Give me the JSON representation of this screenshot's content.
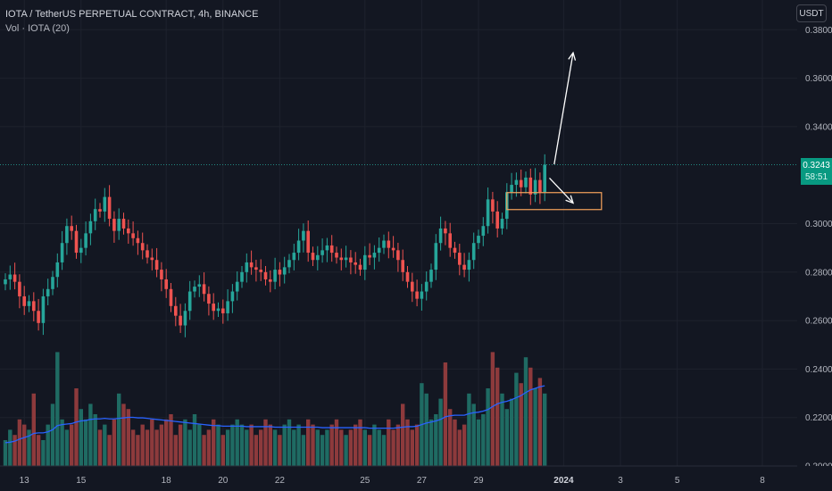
{
  "header": {
    "title": "IOTA / TetherUS PERPETUAL CONTRACT, 4h, BINANCE",
    "volume_label": "Vol · IOTA (20)"
  },
  "currency_button": "USDT",
  "last_price": {
    "value": "0.3243",
    "countdown": "58:51",
    "color": "#089981"
  },
  "colors": {
    "background": "#131722",
    "up": "#26a69a",
    "down": "#ef5350",
    "volume_up": "#1f6b63",
    "volume_down": "#8d3a3c",
    "volume_ma": "#2962ff",
    "zone_border": "#f7a35c",
    "arrow": "#ffffff"
  },
  "chart_data": {
    "type": "candlestick",
    "symbol": "IOTA / TetherUS PERPETUAL CONTRACT",
    "timeframe": "4h",
    "exchange": "BINANCE",
    "y_axis": {
      "ticks": [
        "0.3800",
        "0.3600",
        "0.3400",
        "0.3000",
        "0.2800",
        "0.2600",
        "0.2400",
        "0.2200",
        "0.2000"
      ],
      "range": [
        0.2,
        0.39
      ]
    },
    "x_axis": {
      "ticks": [
        {
          "label": "13",
          "index": 4
        },
        {
          "label": "15",
          "index": 16
        },
        {
          "label": "18",
          "index": 34
        },
        {
          "label": "20",
          "index": 46
        },
        {
          "label": "22",
          "index": 58
        },
        {
          "label": "25",
          "index": 76
        },
        {
          "label": "27",
          "index": 88
        },
        {
          "label": "29",
          "index": 100
        },
        {
          "label": "2024",
          "index": 118,
          "bold": true
        },
        {
          "label": "3",
          "index": 130
        },
        {
          "label": "5",
          "index": 142
        },
        {
          "label": "8",
          "index": 160
        }
      ]
    },
    "closes": [
      0.277,
      0.279,
      0.276,
      0.27,
      0.266,
      0.268,
      0.264,
      0.259,
      0.27,
      0.273,
      0.278,
      0.284,
      0.292,
      0.299,
      0.297,
      0.288,
      0.29,
      0.296,
      0.301,
      0.306,
      0.305,
      0.311,
      0.302,
      0.297,
      0.302,
      0.298,
      0.296,
      0.294,
      0.292,
      0.289,
      0.286,
      0.285,
      0.281,
      0.277,
      0.273,
      0.266,
      0.262,
      0.258,
      0.264,
      0.272,
      0.274,
      0.275,
      0.271,
      0.267,
      0.264,
      0.265,
      0.263,
      0.268,
      0.272,
      0.276,
      0.28,
      0.284,
      0.282,
      0.281,
      0.28,
      0.277,
      0.276,
      0.281,
      0.279,
      0.282,
      0.285,
      0.288,
      0.293,
      0.297,
      0.288,
      0.285,
      0.287,
      0.289,
      0.291,
      0.288,
      0.286,
      0.285,
      0.286,
      0.284,
      0.283,
      0.281,
      0.287,
      0.286,
      0.288,
      0.29,
      0.293,
      0.29,
      0.289,
      0.285,
      0.28,
      0.276,
      0.272,
      0.269,
      0.272,
      0.276,
      0.281,
      0.292,
      0.298,
      0.296,
      0.29,
      0.288,
      0.283,
      0.281,
      0.285,
      0.292,
      0.295,
      0.299,
      0.31,
      0.305,
      0.298,
      0.302,
      0.313,
      0.316,
      0.318,
      0.315,
      0.319,
      0.312,
      0.318,
      0.313,
      0.3243
    ],
    "volumes": [
      5,
      7,
      6,
      9,
      8,
      7,
      14,
      6,
      5,
      8,
      12,
      22,
      9,
      7,
      8,
      15,
      11,
      9,
      12,
      10,
      7,
      8,
      6,
      9,
      14,
      12,
      11,
      7,
      6,
      8,
      7,
      9,
      7,
      8,
      9,
      10,
      6,
      8,
      9,
      7,
      10,
      8,
      6,
      7,
      9,
      8,
      6,
      7,
      8,
      9,
      8,
      7,
      8,
      6,
      7,
      9,
      8,
      7,
      6,
      8,
      9,
      7,
      8,
      6,
      9,
      8,
      7,
      6,
      7,
      8,
      9,
      7,
      6,
      7,
      8,
      9,
      7,
      6,
      8,
      7,
      6,
      9,
      7,
      8,
      12,
      9,
      7,
      8,
      16,
      14,
      9,
      10,
      13,
      20,
      11,
      9,
      7,
      8,
      14,
      12,
      9,
      10,
      15,
      22,
      19,
      14,
      11,
      13,
      18,
      16,
      21,
      19,
      15,
      17,
      14
    ],
    "volume_ma": [
      4.5,
      4.6,
      4.8,
      5.2,
      5.5,
      5.8,
      6.3,
      6.4,
      6.4,
      6.6,
      7.0,
      7.8,
      8.0,
      8.1,
      8.2,
      8.5,
      8.7,
      8.8,
      9.0,
      9.1,
      9.1,
      9.2,
      9.1,
      9.1,
      9.2,
      9.3,
      9.4,
      9.4,
      9.3,
      9.3,
      9.2,
      9.1,
      9.0,
      8.9,
      8.8,
      8.7,
      8.6,
      8.5,
      8.4,
      8.3,
      8.2,
      8.1,
      8.0,
      7.9,
      7.8,
      7.8,
      7.7,
      7.7,
      7.7,
      7.7,
      7.7,
      7.6,
      7.6,
      7.6,
      7.6,
      7.6,
      7.6,
      7.5,
      7.5,
      7.5,
      7.5,
      7.5,
      7.5,
      7.5,
      7.5,
      7.5,
      7.5,
      7.4,
      7.4,
      7.4,
      7.4,
      7.4,
      7.4,
      7.4,
      7.4,
      7.4,
      7.4,
      7.3,
      7.3,
      7.3,
      7.3,
      7.3,
      7.3,
      7.4,
      7.5,
      7.6,
      7.6,
      7.7,
      8.0,
      8.3,
      8.5,
      8.7,
      9.0,
      9.5,
      9.7,
      9.8,
      9.8,
      9.8,
      10.1,
      10.3,
      10.4,
      10.6,
      10.9,
      11.5,
      12.0,
      12.3,
      12.5,
      12.8,
      13.2,
      13.6,
      14.2,
      14.7,
      15.0,
      15.3,
      15.5
    ],
    "annotations": {
      "zone": {
        "from_index": 106,
        "to_index": 126,
        "price_top": 0.3128,
        "price_bottom": 0.3058
      },
      "arrow_up": {
        "from_index": 116,
        "from_price": 0.3245,
        "to_index": 120,
        "to_price": 0.3705
      },
      "arrow_down": {
        "from_index": 115,
        "from_price": 0.3188,
        "to_index": 120,
        "to_price": 0.3085
      },
      "last_price_line": 0.3243
    }
  }
}
